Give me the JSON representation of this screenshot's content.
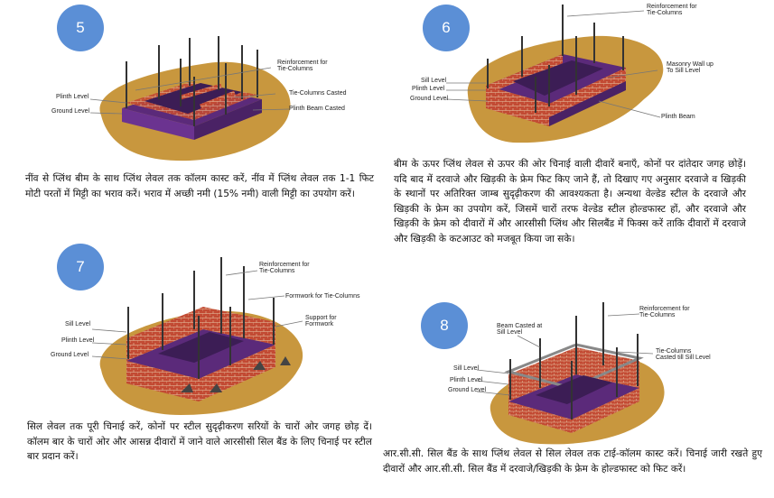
{
  "steps": [
    {
      "number": "5",
      "labels": {
        "reinforcement": "Reinforcement for\nTie-Columns",
        "tie_cast": "Tie-Columns Casted",
        "plinth_beam": "Plinth Beam Casted",
        "plinth_level": "Plinth Level",
        "ground_level": "Ground Level"
      },
      "text": "नींव से प्लिंथ बीम के साथ प्लिंथ लेवल तक कॉलम कास्ट करें, नींव में प्लिंथ लेवल तक 1-1 फिट मोटी परतों में मिट्टी का भराव करें। भराव में अच्छी नमी (15% नमी) वाली मिट्टी का उपयोग करें।"
    },
    {
      "number": "6",
      "labels": {
        "reinforcement": "Reinforcement for\nTie-Columns",
        "masonry": "Masonry Wall up\nTo Sill Level",
        "sill_level": "Sill Level",
        "plinth_level": "Plinth Level",
        "ground_level": "Ground Level",
        "plinth_beam": "Plinth Beam"
      },
      "text": "बीम के ऊपर प्लिंथ लेवल से ऊपर की ओर चिनाई वाली दीवारें बनाएँ, कोनों पर दांतेदार जगह छोड़ें। यदि बाद में दरवाजे और खिड़की के फ्रेम फिट किए जाने हैं, तो दिखाए गए अनुसार दरवाजे व खिड़की के स्थानों पर अतिरिक्त जाम्ब सुदृढ़ीकरण की आवश्यकता है। अन्यथा वेल्डेड स्टील के दरवाजे और खिड़की के फ्रेम का उपयोग करें, जिसमें चारों तरफ वेल्डेड स्टील होल्डफास्ट हों, और दरवाजे और खिड़की के फ्रेम को दीवारों में और आरसीसी प्लिंथ और सिलबैंड में फिक्स करें ताकि दीवारों में दरवाजे और खिड़की के कटआउट को मजबूत किया जा सके।"
    },
    {
      "number": "7",
      "labels": {
        "reinforcement": "Reinforcement for\nTie-Columns",
        "formwork": "Formwork for Tie-Columns",
        "support": "Support for\nFormwork",
        "sill_level": "Sill Level",
        "plinth_level": "Plinth Level",
        "ground_level": "Ground Level"
      },
      "text": "सिल लेवल तक पूरी चिनाई करें, कोनों पर स्टील सुदृढ़ीकरण सरियों के चारों ओर जगह छोड़ दें। कॉलम बार के चारों ओर और आसन्न दीवारों में जाने वाले आरसीसी सिल बैंड के लिए चिनाई पर स्टील बार प्रदान करें।"
    },
    {
      "number": "8",
      "labels": {
        "beam_cast": "Beam Casted at\nSill Level",
        "reinforcement": "Reinforcement for\nTie-Columns",
        "tie_cast": "Tie-Columns\nCasted till Sill Level",
        "sill_level": "Sill Level",
        "plinth_level": "Plinth Level",
        "ground_level": "Ground Level"
      },
      "text": "आर.सी.सी. सिल बैंड के साथ प्लिंथ लेवल से सिल लेवल तक टाई-कॉलम कास्ट करें। चिनाई जारी रखते हुए दीवारों और आर.सी.सी. सिल बैंड में दरवाजे/खिड़की के फ्रेम के होल्डफास्ट को फिट करें।"
    }
  ]
}
